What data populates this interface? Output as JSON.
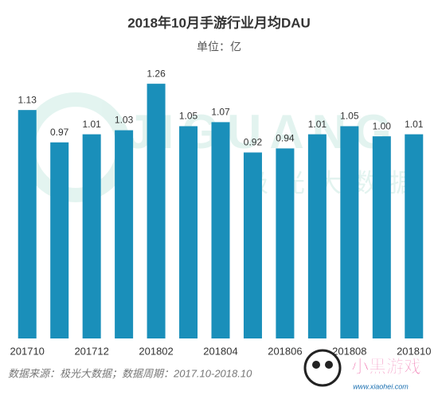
{
  "chart_data": {
    "type": "bar",
    "title": "2018年10月手游行业月均DAU",
    "subtitle": "单位：亿",
    "source": "数据来源：极光大数据；数据周期：2017.10-2018.10",
    "watermark": [
      "JIGUANG",
      "极光大数据"
    ],
    "logo": [
      "小黑游戏",
      "www.xiaohei.com"
    ],
    "categories": [
      "201710",
      null,
      "201712",
      null,
      "201802",
      null,
      "201804",
      null,
      "201806",
      null,
      "201808",
      null,
      "201810"
    ],
    "values": [
      1.13,
      0.97,
      1.01,
      1.03,
      1.26,
      1.05,
      1.07,
      0.92,
      0.94,
      1.01,
      1.05,
      1.0,
      1.01
    ],
    "value_labels": [
      "1.13",
      "0.97",
      "1.01",
      "1.03",
      "1.26",
      "1.05",
      "1.07",
      "0.92",
      "0.94",
      "1.01",
      "1.05",
      "1.00",
      "1.01"
    ],
    "color": "#1a8fba",
    "ylim": [
      0,
      1.3
    ]
  }
}
